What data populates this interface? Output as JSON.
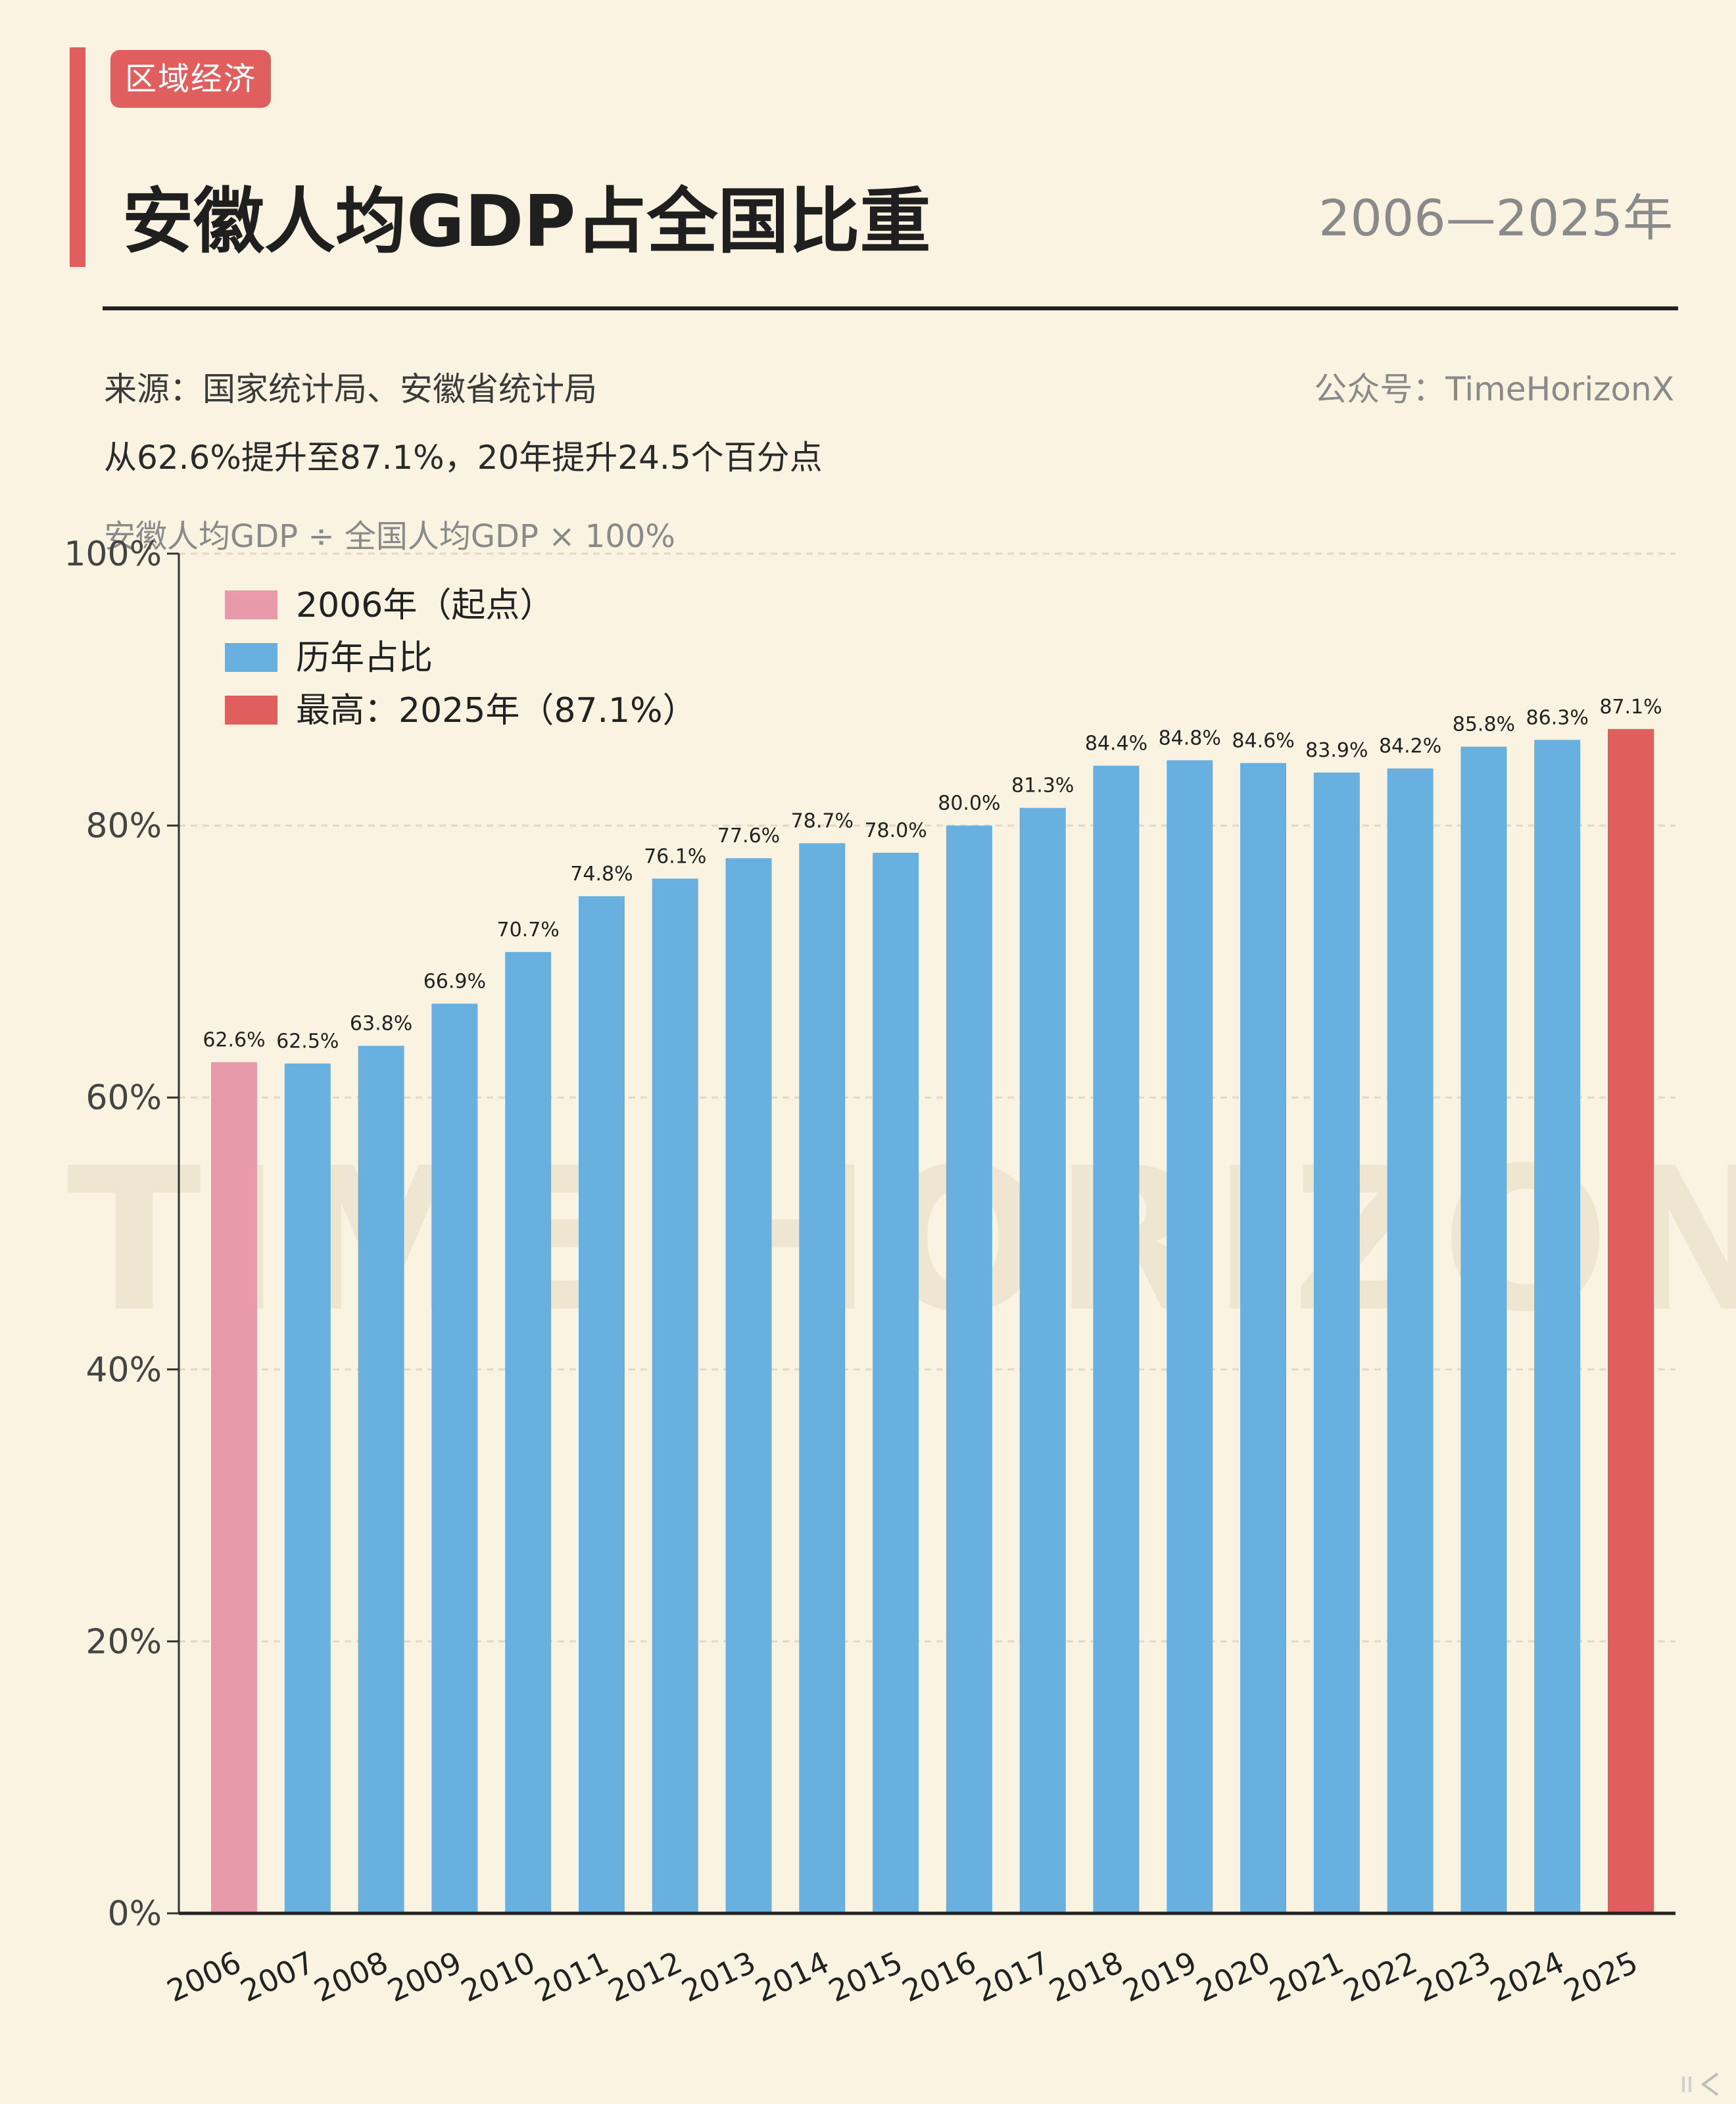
{
  "header": {
    "tag": "区域经济",
    "title": "安徽人均GDP占全国比重",
    "year_range": "2006—2025年",
    "source": "来源：国家统计局、安徽省统计局",
    "account": "公众号：TimeHorizonX",
    "subtitle": "从62.6%提升至87.1%，20年提升24.5个百分点",
    "formula": "安徽人均GDP ÷ 全国人均GDP × 100%"
  },
  "colors": {
    "background": "#faf3e1",
    "start": "#e89aaa",
    "normal": "#68b0e0",
    "max": "#e05e5e"
  },
  "watermark": "TIME HORIZON",
  "chart_data": {
    "type": "bar",
    "categories": [
      "2006",
      "2007",
      "2008",
      "2009",
      "2010",
      "2011",
      "2012",
      "2013",
      "2014",
      "2015",
      "2016",
      "2017",
      "2018",
      "2019",
      "2020",
      "2021",
      "2022",
      "2023",
      "2024",
      "2025"
    ],
    "values": [
      62.6,
      62.5,
      63.8,
      66.9,
      70.7,
      74.8,
      76.1,
      77.6,
      78.7,
      78.0,
      80.0,
      81.3,
      84.4,
      84.8,
      84.6,
      83.9,
      84.2,
      85.8,
      86.3,
      87.1
    ],
    "value_labels": [
      "62.6%",
      "62.5%",
      "63.8%",
      "66.9%",
      "70.7%",
      "74.8%",
      "76.1%",
      "77.6%",
      "78.7%",
      "78.0%",
      "80.0%",
      "81.3%",
      "84.4%",
      "84.8%",
      "84.6%",
      "83.9%",
      "84.2%",
      "85.8%",
      "86.3%",
      "87.1%"
    ],
    "ylim": [
      0,
      100
    ],
    "yticks": [
      0,
      20,
      40,
      60,
      80,
      100
    ],
    "ytick_labels": [
      "0%",
      "20%",
      "40%",
      "60%",
      "80%",
      "100%"
    ],
    "grid": true,
    "legend_position": "top-left",
    "legend": [
      {
        "label": "2006年（起点）",
        "color_key": "start"
      },
      {
        "label": "历年占比",
        "color_key": "normal"
      },
      {
        "label": "最高：2025年（87.1%）",
        "color_key": "max"
      }
    ]
  }
}
